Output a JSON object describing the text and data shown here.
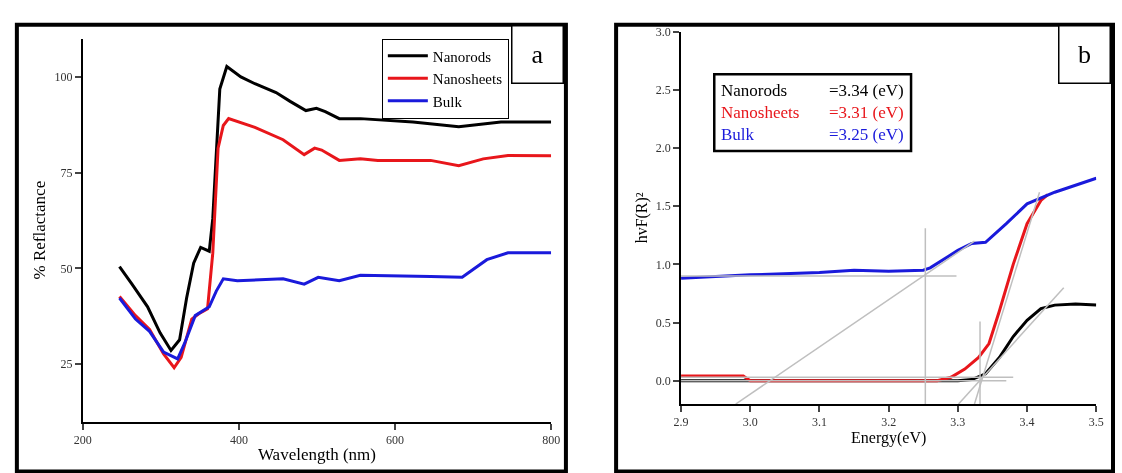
{
  "chart_data": [
    {
      "type": "line",
      "xlabel": "Wavelength (nm)",
      "ylabel": "% Reflactance",
      "annotations": [
        "a"
      ],
      "xlim": [
        200,
        800
      ],
      "xticks": [
        200,
        400,
        600,
        800
      ],
      "ylim": [
        10,
        110
      ],
      "yticks": [
        25,
        50,
        75,
        100
      ],
      "legend": "top right",
      "grid": false,
      "series": [
        {
          "name": "Nanorods",
          "color": "#000000",
          "x": [
            247,
            263,
            283,
            299,
            313,
            324,
            333,
            342,
            351,
            362,
            366.5,
            375.5,
            384.5,
            402.5,
            420.5,
            447.6,
            465.6,
            485.8,
            499.3,
            510.6,
            528.6,
            555.6,
            623,
            681.6,
            735.6,
            800
          ],
          "values": [
            50.5,
            45.9,
            40,
            33.2,
            28.6,
            31.4,
            42.3,
            51.4,
            55.5,
            54.5,
            63,
            96.8,
            102.7,
            100,
            98.2,
            95.9,
            93.6,
            91.2,
            91.8,
            90.9,
            89.1,
            89.1,
            88.2,
            87,
            88.2,
            88.2
          ]
        },
        {
          "name": "Nanosheets",
          "color": "#e8161b",
          "x": [
            247,
            267.5,
            285.5,
            303.5,
            317,
            326,
            339.6,
            348.6,
            359.8,
            366.5,
            373.3,
            380,
            386.8,
            420.5,
            456.6,
            483.6,
            497,
            506,
            528.6,
            555.6,
            578,
            645.6,
            681.6,
            713,
            744.7,
            800
          ],
          "values": [
            42.7,
            37.7,
            34.1,
            27.7,
            24.1,
            26.8,
            36.8,
            38.2,
            39.5,
            54,
            81.4,
            87.3,
            89.1,
            86.8,
            83.6,
            79.7,
            81.4,
            80.9,
            78.2,
            78.6,
            78.2,
            78.2,
            76.8,
            78.6,
            79.5,
            79.4
          ]
        },
        {
          "name": "Bulk",
          "color": "#1a1adb",
          "x": [
            247,
            267.5,
            285.5,
            303.5,
            321.5,
            330.5,
            344,
            362,
            371,
            380,
            398,
            456.6,
            483.6,
            501.6,
            528.6,
            555.6,
            645.6,
            686,
            717.6,
            744.7,
            800
          ],
          "values": [
            42.3,
            36.8,
            33.6,
            28.2,
            26.4,
            30.5,
            37.7,
            40,
            44.1,
            47.3,
            46.8,
            47.3,
            45.9,
            47.7,
            46.8,
            48.2,
            47.9,
            47.7,
            52.3,
            54.1,
            54.1
          ]
        }
      ]
    },
    {
      "type": "line",
      "xlabel": "Energy(eV)",
      "ylabel": "hvF(R)²",
      "annotations": [
        "b",
        "=3.34 (eV)",
        "=3.31 (eV)",
        "=3.25 (eV)"
      ],
      "xlim": [
        2.9,
        3.5
      ],
      "xticks": [
        2.9,
        {
          "value": 3,
          "label": "3.0"
        },
        3.1,
        3.2,
        3.3,
        3.4,
        3.5
      ],
      "ylim": [
        -0.2,
        3.0
      ],
      "yticks": [
        {
          "value": 0,
          "label": "0.0"
        },
        0.5,
        {
          "value": 1,
          "label": "1.0"
        },
        1.5,
        {
          "value": 2,
          "label": "2.0"
        },
        2.5,
        {
          "value": 3,
          "label": "3.0"
        }
      ],
      "grid": false,
      "series": [
        {
          "name": "Nanorods",
          "color": "#000000",
          "x": [
            2.9,
            3.0,
            3.1,
            3.2,
            3.3,
            3.32,
            3.34,
            3.36,
            3.38,
            3.4,
            3.42,
            3.44,
            3.47,
            3.5
          ],
          "values": [
            0.0,
            0.0,
            0.0,
            0.0,
            0.0,
            0.01,
            0.06,
            0.2,
            0.38,
            0.52,
            0.62,
            0.65,
            0.66,
            0.65
          ]
        },
        {
          "name": "Nanosheets",
          "color": "#e8161b",
          "x": [
            2.9,
            2.99,
            3.0,
            3.1,
            3.2,
            3.27,
            3.29,
            3.31,
            3.33,
            3.345,
            3.36,
            3.38,
            3.4,
            3.42,
            3.43
          ],
          "values": [
            0.04,
            0.04,
            0.0,
            0.0,
            0.0,
            0.0,
            0.03,
            0.1,
            0.2,
            0.32,
            0.6,
            1.0,
            1.35,
            1.55,
            1.6
          ]
        },
        {
          "name": "Bulk",
          "color": "#1a1adb",
          "x": [
            2.9,
            3.0,
            3.1,
            3.15,
            3.2,
            3.25,
            3.26,
            3.3,
            3.32,
            3.34,
            3.37,
            3.4,
            3.44,
            3.5
          ],
          "values": [
            0.88,
            0.91,
            0.93,
            0.95,
            0.94,
            0.95,
            0.97,
            1.12,
            1.18,
            1.19,
            1.35,
            1.52,
            1.62,
            1.74
          ]
        },
        {
          "color": "#bfbfbf",
          "x": [
            2.979,
            3.324
          ],
          "values": [
            -0.2,
            1.2
          ]
        },
        {
          "color": "#bfbfbf",
          "x": [
            2.9,
            3.298
          ],
          "values": [
            0.9,
            0.9
          ]
        },
        {
          "color": "#bfbfbf",
          "x": [
            3.253,
            3.253
          ],
          "values": [
            -0.2,
            1.31
          ]
        },
        {
          "color": "#bfbfbf",
          "x": [
            3.324,
            3.418
          ],
          "values": [
            -0.2,
            1.62
          ]
        },
        {
          "color": "#bfbfbf",
          "x": [
            3.301,
            3.453
          ],
          "values": [
            -0.2,
            0.8
          ]
        },
        {
          "color": "#bfbfbf",
          "x": [
            3.332,
            3.332
          ],
          "values": [
            -0.2,
            0.51
          ]
        },
        {
          "color": "#bfbfbf",
          "x": [
            2.9,
            3.38
          ],
          "values": [
            0.03,
            0.03
          ]
        },
        {
          "color": "#bfbfbf",
          "x": [
            2.9,
            3.37
          ],
          "values": [
            0.0,
            0.0
          ]
        }
      ]
    }
  ]
}
